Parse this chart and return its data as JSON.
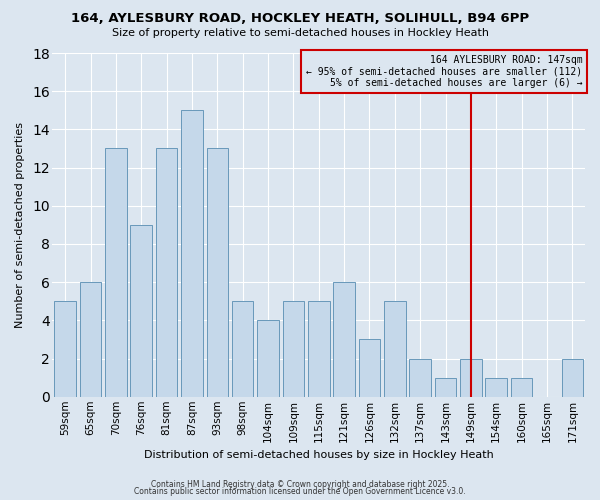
{
  "title": "164, AYLESBURY ROAD, HOCKLEY HEATH, SOLIHULL, B94 6PP",
  "subtitle": "Size of property relative to semi-detached houses in Hockley Heath",
  "xlabel": "Distribution of semi-detached houses by size in Hockley Heath",
  "ylabel": "Number of semi-detached properties",
  "categories": [
    "59sqm",
    "65sqm",
    "70sqm",
    "76sqm",
    "81sqm",
    "87sqm",
    "93sqm",
    "98sqm",
    "104sqm",
    "109sqm",
    "115sqm",
    "121sqm",
    "126sqm",
    "132sqm",
    "137sqm",
    "143sqm",
    "149sqm",
    "154sqm",
    "160sqm",
    "165sqm",
    "171sqm"
  ],
  "values": [
    5,
    6,
    13,
    9,
    13,
    15,
    13,
    5,
    4,
    5,
    5,
    6,
    3,
    5,
    2,
    1,
    2,
    1,
    1,
    0,
    2
  ],
  "bar_color": "#c5d8ea",
  "bar_edgecolor": "#6898ba",
  "background_color": "#dce6f0",
  "grid_color": "#ffffff",
  "vline_x": 16,
  "vline_color": "#cc0000",
  "annotation_title": "164 AYLESBURY ROAD: 147sqm",
  "annotation_line1": "← 95% of semi-detached houses are smaller (112)",
  "annotation_line2": "5% of semi-detached houses are larger (6) →",
  "annotation_box_color": "#cc0000",
  "ylim": [
    0,
    18
  ],
  "yticks": [
    0,
    2,
    4,
    6,
    8,
    10,
    12,
    14,
    16,
    18
  ],
  "footer1": "Contains HM Land Registry data © Crown copyright and database right 2025.",
  "footer2": "Contains public sector information licensed under the Open Government Licence v3.0."
}
